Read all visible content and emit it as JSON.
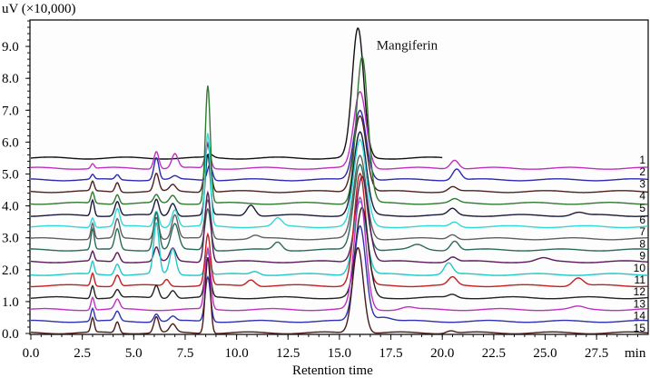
{
  "chart_data": {
    "type": "line",
    "ylabel": "uV (×10,000)",
    "xlabel": "Retention time",
    "x_unit": "min",
    "xlim": [
      0,
      30
    ],
    "ylim": [
      0,
      9.9
    ],
    "x_ticks": [
      "0.0",
      "2.5",
      "5.0",
      "7.5",
      "10.0",
      "12.5",
      "15.0",
      "17.5",
      "20.0",
      "22.5",
      "25.0",
      "27.5"
    ],
    "y_ticks": [
      "0.0",
      "1.0",
      "2.0",
      "3.0",
      "4.0",
      "5.0",
      "6.0",
      "7.0",
      "8.0",
      "9.0"
    ],
    "annotation": "Mangiferin",
    "annotation_x": 16.8,
    "annotation_y": 8.9,
    "grid": false,
    "legend": "right-edge trace labels",
    "series": [
      {
        "label": "1",
        "color": "#111111",
        "baseline": 5.5,
        "end": 20,
        "peaks": [
          [
            15.9,
            4.05,
            0.28
          ],
          [
            8.7,
            0.1,
            0.15
          ]
        ]
      },
      {
        "label": "2",
        "color": "#c030c0",
        "baseline": 5.18,
        "end": 30,
        "peaks": [
          [
            3.0,
            0.15,
            0.08
          ],
          [
            6.1,
            0.55,
            0.12
          ],
          [
            7.0,
            0.45,
            0.15
          ],
          [
            8.6,
            0.8,
            0.12
          ],
          [
            16.0,
            2.4,
            0.3
          ],
          [
            20.6,
            0.28,
            0.2
          ]
        ]
      },
      {
        "label": "3",
        "color": "#2a2ab0",
        "baseline": 4.82,
        "end": 30,
        "peaks": [
          [
            3.0,
            0.15,
            0.08
          ],
          [
            4.2,
            0.15,
            0.1
          ],
          [
            6.1,
            0.7,
            0.12
          ],
          [
            7.0,
            0.1,
            0.15
          ],
          [
            8.7,
            0.5,
            0.12
          ],
          [
            16.0,
            2.2,
            0.3
          ],
          [
            20.7,
            0.35,
            0.2
          ]
        ]
      },
      {
        "label": "4",
        "color": "#502020",
        "baseline": 4.45,
        "end": 30,
        "peaks": [
          [
            3.0,
            0.3,
            0.08
          ],
          [
            4.2,
            0.3,
            0.1
          ],
          [
            6.1,
            0.55,
            0.12
          ],
          [
            6.9,
            0.2,
            0.15
          ],
          [
            8.6,
            1.5,
            0.14
          ],
          [
            16.0,
            2.4,
            0.3
          ],
          [
            20.5,
            0.15,
            0.2
          ]
        ]
      },
      {
        "label": "5",
        "color": "#2f7a2f",
        "baseline": 4.08,
        "end": 30,
        "peaks": [
          [
            3.0,
            0.35,
            0.08
          ],
          [
            4.2,
            0.3,
            0.1
          ],
          [
            6.1,
            0.25,
            0.12
          ],
          [
            6.9,
            0.25,
            0.15
          ],
          [
            8.6,
            3.7,
            0.12
          ],
          [
            16.1,
            4.6,
            0.28
          ],
          [
            20.6,
            0.12,
            0.2
          ]
        ]
      },
      {
        "label": "6",
        "color": "#1a1a3a",
        "baseline": 3.7,
        "end": 30,
        "peaks": [
          [
            3.0,
            0.5,
            0.08
          ],
          [
            4.2,
            0.45,
            0.12
          ],
          [
            6.1,
            0.5,
            0.12
          ],
          [
            6.9,
            0.4,
            0.15
          ],
          [
            8.6,
            1.9,
            0.12
          ],
          [
            10.7,
            0.35,
            0.2
          ],
          [
            16.0,
            2.6,
            0.3
          ],
          [
            20.5,
            0.2,
            0.2
          ],
          [
            26.6,
            0.1,
            0.3
          ]
        ]
      },
      {
        "label": "7",
        "color": "#30d8d8",
        "baseline": 3.35,
        "end": 30,
        "peaks": [
          [
            3.0,
            0.3,
            0.08
          ],
          [
            4.2,
            0.55,
            0.12
          ],
          [
            6.1,
            0.5,
            0.12
          ],
          [
            7.0,
            0.55,
            0.15
          ],
          [
            8.6,
            2.9,
            0.12
          ],
          [
            12.0,
            0.25,
            0.2
          ],
          [
            16.0,
            2.7,
            0.3
          ],
          [
            20.6,
            0.15,
            0.2
          ]
        ]
      },
      {
        "label": "8",
        "color": "#606060",
        "baseline": 2.97,
        "end": 30,
        "peaks": [
          [
            3.0,
            0.5,
            0.08
          ],
          [
            4.2,
            0.6,
            0.12
          ],
          [
            6.1,
            0.7,
            0.12
          ],
          [
            7.0,
            0.75,
            0.15
          ],
          [
            8.6,
            1.2,
            0.14
          ],
          [
            10.9,
            0.1,
            0.2
          ],
          [
            16.0,
            2.6,
            0.3
          ],
          [
            20.5,
            0.15,
            0.2
          ]
        ]
      },
      {
        "label": "9",
        "color": "#2a6a5a",
        "baseline": 2.62,
        "end": 30,
        "peaks": [
          [
            3.0,
            0.65,
            0.08
          ],
          [
            4.2,
            0.65,
            0.12
          ],
          [
            6.1,
            1.2,
            0.13
          ],
          [
            7.0,
            0.8,
            0.18
          ],
          [
            8.6,
            1.3,
            0.14
          ],
          [
            12.0,
            0.25,
            0.2
          ],
          [
            16.0,
            2.7,
            0.3
          ],
          [
            18.8,
            0.15,
            0.3
          ],
          [
            20.6,
            0.3,
            0.2
          ]
        ]
      },
      {
        "label": "10",
        "color": "#5a1a5a",
        "baseline": 2.25,
        "end": 30,
        "peaks": [
          [
            3.0,
            0.3,
            0.08
          ],
          [
            4.2,
            0.3,
            0.12
          ],
          [
            6.1,
            0.45,
            0.12
          ],
          [
            6.9,
            0.4,
            0.15
          ],
          [
            8.6,
            2.2,
            0.14
          ],
          [
            16.1,
            2.7,
            0.3
          ],
          [
            20.5,
            0.15,
            0.2
          ],
          [
            24.9,
            0.1,
            0.3
          ]
        ]
      },
      {
        "label": "11",
        "color": "#20c8c8",
        "baseline": 1.85,
        "end": 30,
        "peaks": [
          [
            3.0,
            0.4,
            0.08
          ],
          [
            4.2,
            0.35,
            0.12
          ],
          [
            6.1,
            1.6,
            0.13
          ],
          [
            6.9,
            0.8,
            0.15
          ],
          [
            8.6,
            0.7,
            0.12
          ],
          [
            10.9,
            0.1,
            0.2
          ],
          [
            16.0,
            2.3,
            0.3
          ],
          [
            20.3,
            0.35,
            0.2
          ]
        ]
      },
      {
        "label": "12",
        "color": "#c02020",
        "baseline": 1.5,
        "end": 30,
        "peaks": [
          [
            3.0,
            0.4,
            0.08
          ],
          [
            4.2,
            0.35,
            0.12
          ],
          [
            6.6,
            0.2,
            0.12
          ],
          [
            8.6,
            1.6,
            0.13
          ],
          [
            10.7,
            0.2,
            0.2
          ],
          [
            16.0,
            3.5,
            0.28
          ],
          [
            20.5,
            0.25,
            0.2
          ],
          [
            26.6,
            0.25,
            0.25
          ]
        ]
      },
      {
        "label": "13",
        "color": "#222222",
        "baseline": 1.12,
        "end": 30,
        "peaks": [
          [
            3.0,
            0.4,
            0.08
          ],
          [
            4.2,
            0.25,
            0.12
          ],
          [
            6.1,
            0.4,
            0.12
          ],
          [
            6.9,
            0.25,
            0.15
          ],
          [
            8.6,
            1.2,
            0.13
          ],
          [
            16.1,
            2.8,
            0.3
          ],
          [
            20.5,
            0.1,
            0.2
          ]
        ]
      },
      {
        "label": "14",
        "color": "#c030c0",
        "baseline": 0.75,
        "end": 30,
        "peaks": [
          [
            3.0,
            0.4,
            0.08
          ],
          [
            4.2,
            0.3,
            0.12
          ],
          [
            8.6,
            1.9,
            0.13
          ],
          [
            16.0,
            3.5,
            0.28
          ],
          [
            18.3,
            0.08,
            0.3
          ],
          [
            26.6,
            0.08,
            0.3
          ]
        ]
      },
      {
        "label": "15",
        "color": "#3030b0",
        "baseline": 0.38,
        "end": 30,
        "peaks": [
          [
            3.0,
            0.4,
            0.08
          ],
          [
            4.2,
            0.3,
            0.12
          ],
          [
            6.1,
            0.25,
            0.12
          ],
          [
            6.9,
            0.15,
            0.15
          ],
          [
            8.6,
            1.4,
            0.13
          ],
          [
            16.0,
            3.0,
            0.28
          ],
          [
            17.1,
            0.15,
            0.4
          ]
        ]
      },
      {
        "color": "#4a1a1a",
        "baseline": 0.02,
        "end": 30,
        "peaks": [
          [
            3.0,
            0.45,
            0.08
          ],
          [
            4.2,
            0.35,
            0.1
          ],
          [
            6.1,
            0.5,
            0.12
          ],
          [
            6.9,
            0.25,
            0.15
          ],
          [
            8.6,
            2.4,
            0.12
          ],
          [
            15.9,
            2.7,
            0.26
          ],
          [
            20.4,
            0.08,
            0.2
          ]
        ]
      }
    ]
  }
}
